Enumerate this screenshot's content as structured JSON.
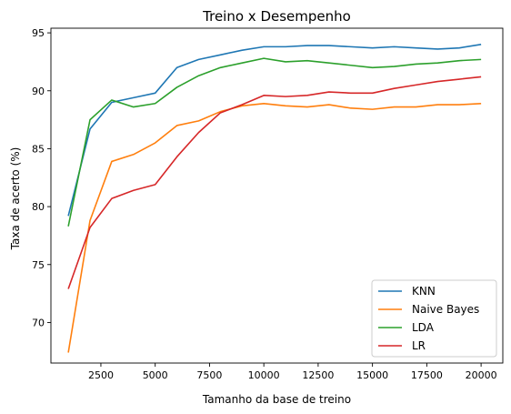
{
  "chart_data": {
    "type": "line",
    "title": "Treino x Desempenho",
    "xlabel": "Tamanho da base de treino",
    "ylabel": "Taxa de acerto (%)",
    "xlim": [
      200,
      21000
    ],
    "ylim": [
      66.5,
      95.4
    ],
    "xticks": [
      2500,
      5000,
      7500,
      10000,
      12500,
      15000,
      17500,
      20000
    ],
    "yticks": [
      70,
      75,
      80,
      85,
      90,
      95
    ],
    "grid": false,
    "legend_position": "lower-right",
    "x": [
      1000,
      2000,
      3000,
      4000,
      5000,
      6000,
      7000,
      8000,
      9000,
      10000,
      11000,
      12000,
      13000,
      14000,
      15000,
      16000,
      17000,
      18000,
      19000,
      20000
    ],
    "series": [
      {
        "name": "KNN",
        "color": "#1f77b4",
        "values": [
          79.2,
          86.7,
          89.0,
          89.4,
          89.8,
          92.0,
          92.7,
          93.1,
          93.5,
          93.8,
          93.8,
          93.9,
          93.9,
          93.8,
          93.7,
          93.8,
          93.7,
          93.6,
          93.7,
          94.0
        ]
      },
      {
        "name": "Naive Bayes",
        "color": "#ff7f0e",
        "values": [
          67.4,
          78.8,
          83.9,
          84.5,
          85.5,
          87.0,
          87.4,
          88.2,
          88.7,
          88.9,
          88.7,
          88.6,
          88.8,
          88.5,
          88.4,
          88.6,
          88.6,
          88.8,
          88.8,
          88.9
        ]
      },
      {
        "name": "LDA",
        "color": "#2ca02c",
        "values": [
          78.3,
          87.5,
          89.2,
          88.6,
          88.9,
          90.3,
          91.3,
          92.0,
          92.4,
          92.8,
          92.5,
          92.6,
          92.4,
          92.2,
          92.0,
          92.1,
          92.3,
          92.4,
          92.6,
          92.7
        ]
      },
      {
        "name": "LR",
        "color": "#d62728",
        "values": [
          72.9,
          78.2,
          80.7,
          81.4,
          81.9,
          84.3,
          86.4,
          88.1,
          88.8,
          89.6,
          89.5,
          89.6,
          89.9,
          89.8,
          89.8,
          90.2,
          90.5,
          90.8,
          91.0,
          91.2
        ]
      }
    ]
  }
}
